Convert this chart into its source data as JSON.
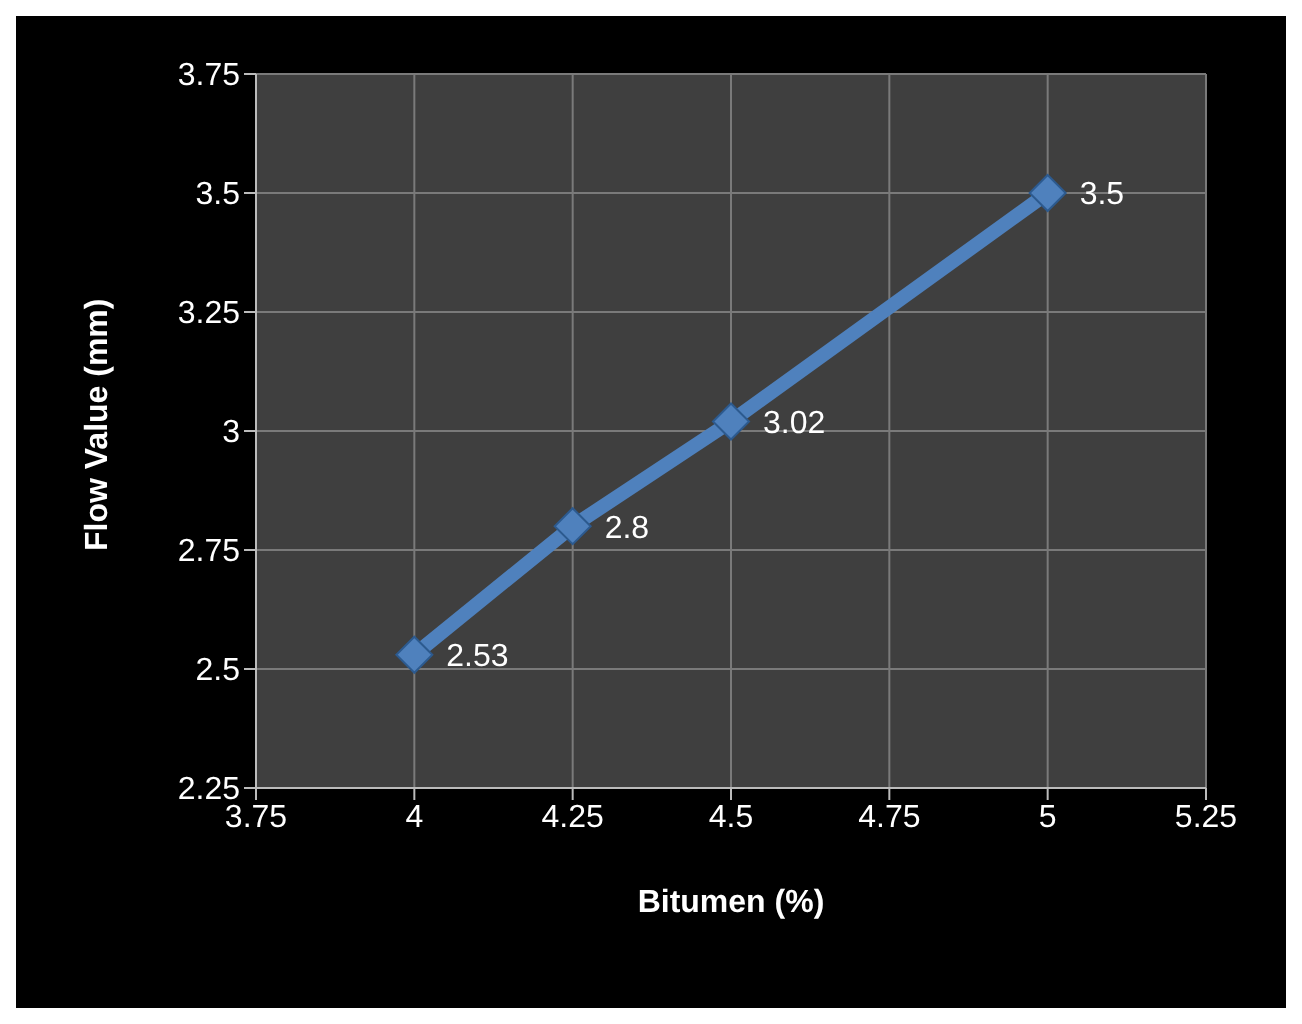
{
  "chart_data": {
    "type": "line",
    "xlabel": "Bitumen (%)",
    "ylabel": "Flow Value (mm)",
    "x": [
      4,
      4.25,
      4.5,
      5
    ],
    "series": [
      {
        "color": "#4f81bd",
        "values": [
          2.53,
          2.8,
          3.02,
          3.5
        ]
      }
    ],
    "xlim": [
      3.75,
      5.25
    ],
    "xticks": [
      3.75,
      4,
      4.25,
      4.5,
      4.75,
      5,
      5.25
    ],
    "ylim": [
      2.25,
      3.75
    ],
    "yticks": [
      2.25,
      2.5,
      2.75,
      3,
      3.25,
      3.5,
      3.75
    ],
    "grid": true,
    "marker": "diamond",
    "data_labels": true,
    "legend": false
  }
}
